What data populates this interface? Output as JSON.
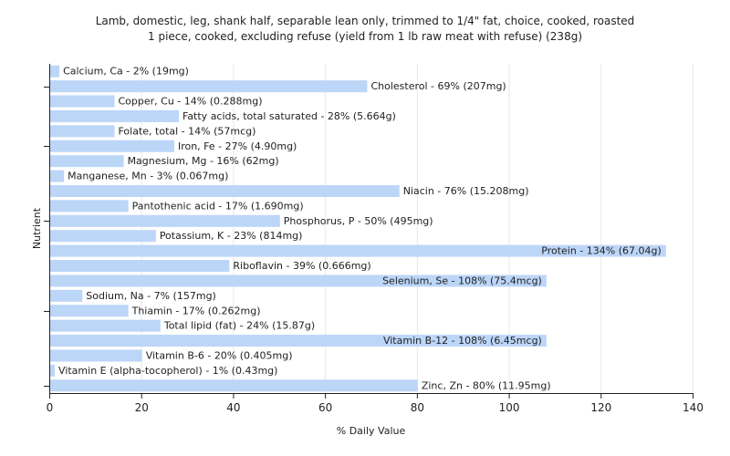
{
  "chart_data": {
    "type": "bar",
    "orientation": "horizontal",
    "title": "Lamb, domestic, leg, shank half, separable lean only, trimmed to 1/4\" fat, choice, cooked, roasted",
    "subtitle": "1 piece, cooked, excluding refuse (yield from 1 lb raw meat with refuse) (238g)",
    "xlabel": "% Daily Value",
    "ylabel": "Nutrient",
    "xlim": [
      0,
      140
    ],
    "xticks": [
      0,
      20,
      40,
      60,
      80,
      100,
      120,
      140
    ],
    "grid": true,
    "categories": [
      "Calcium, Ca",
      "Cholesterol",
      "Copper, Cu",
      "Fatty acids, total saturated",
      "Folate, total",
      "Iron, Fe",
      "Magnesium, Mg",
      "Manganese, Mn",
      "Niacin",
      "Pantothenic acid",
      "Phosphorus, P",
      "Potassium, K",
      "Protein",
      "Riboflavin",
      "Selenium, Se",
      "Sodium, Na",
      "Thiamin",
      "Total lipid (fat)",
      "Vitamin B-12",
      "Vitamin B-6",
      "Vitamin E (alpha-tocopherol)",
      "Zinc, Zn"
    ],
    "values": [
      2,
      69,
      14,
      28,
      14,
      27,
      16,
      3,
      76,
      17,
      50,
      23,
      134,
      39,
      108,
      7,
      17,
      24,
      108,
      20,
      1,
      80
    ],
    "labels": [
      "Calcium, Ca - 2% (19mg)",
      "Cholesterol - 69% (207mg)",
      "Copper, Cu - 14% (0.288mg)",
      "Fatty acids, total saturated - 28% (5.664g)",
      "Folate, total - 14% (57mcg)",
      "Iron, Fe - 27% (4.90mg)",
      "Magnesium, Mg - 16% (62mg)",
      "Manganese, Mn - 3% (0.067mg)",
      "Niacin - 76% (15.208mg)",
      "Pantothenic acid - 17% (1.690mg)",
      "Phosphorus, P - 50% (495mg)",
      "Potassium, K - 23% (814mg)",
      "Protein - 134% (67.04g)",
      "Riboflavin - 39% (0.666mg)",
      "Selenium, Se - 108% (75.4mcg)",
      "Sodium, Na - 7% (157mg)",
      "Thiamin - 17% (0.262mg)",
      "Total lipid (fat) - 24% (15.87g)",
      "Vitamin B-12 - 108% (6.45mcg)",
      "Vitamin B-6 - 20% (0.405mg)",
      "Vitamin E (alpha-tocopherol) - 1% (0.43mg)",
      "Zinc, Zn - 80% (11.95mg)"
    ],
    "bar_color": "#bcd6f8"
  }
}
